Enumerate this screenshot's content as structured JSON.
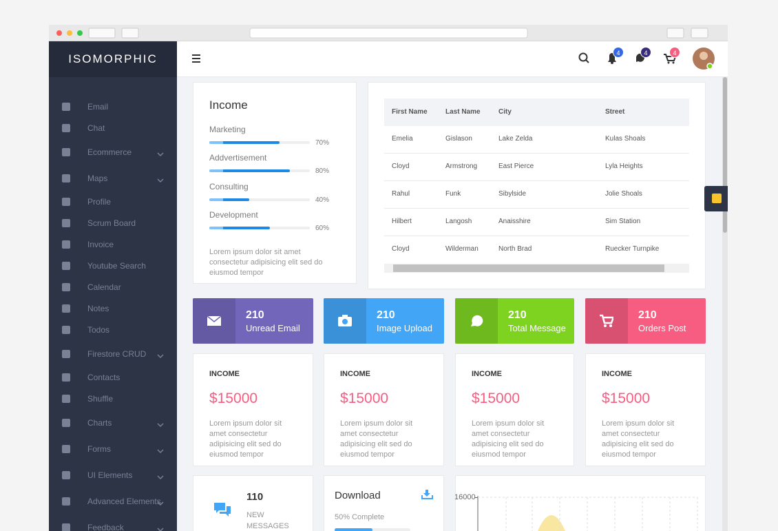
{
  "brand": "ISOMORPHIC",
  "sidebar": [
    {
      "label": "Email"
    },
    {
      "label": "Chat"
    },
    {
      "label": "Ecommerce",
      "submenu": true
    },
    {
      "label": "Maps",
      "submenu": true
    },
    {
      "label": "Profile"
    },
    {
      "label": "Scrum Board"
    },
    {
      "label": "Invoice"
    },
    {
      "label": "Youtube Search"
    },
    {
      "label": "Calendar"
    },
    {
      "label": "Notes"
    },
    {
      "label": "Todos"
    },
    {
      "label": "Firestore CRUD",
      "submenu": true
    },
    {
      "label": "Contacts"
    },
    {
      "label": "Shuffle"
    },
    {
      "label": "Charts",
      "submenu": true
    },
    {
      "label": "Forms",
      "submenu": true
    },
    {
      "label": "UI Elements",
      "submenu": true
    },
    {
      "label": "Advanced Elements",
      "submenu": true
    },
    {
      "label": "Feedback",
      "submenu": true
    }
  ],
  "header": {
    "badges": [
      {
        "value": 4,
        "color": "#3369e7"
      },
      {
        "value": 4,
        "color": "#3a2c7a"
      },
      {
        "value": 4,
        "color": "#f75d81"
      }
    ]
  },
  "income": {
    "title": "Income",
    "items": [
      {
        "label": "Marketing",
        "value": 70,
        "value_label": "70%"
      },
      {
        "label": "Addvertisement",
        "value": 80,
        "value_label": "80%"
      },
      {
        "label": "Consulting",
        "value": 40,
        "value_label": "40%"
      },
      {
        "label": "Development",
        "value": 60,
        "value_label": "60%"
      }
    ],
    "text": "Lorem ipsum dolor sit amet consectetur adipisicing elit sed do eiusmod tempor"
  },
  "table": {
    "columns": [
      "First Name",
      "Last Name",
      "City",
      "Street"
    ],
    "rows": [
      [
        "Emelia",
        "Gislason",
        "Lake Zelda",
        "Kulas Shoals"
      ],
      [
        "Cloyd",
        "Armstrong",
        "East Pierce",
        "Lyla Heights"
      ],
      [
        "Rahul",
        "Funk",
        "Sibylside",
        "Jolie Shoals"
      ],
      [
        "Hilbert",
        "Langosh",
        "Anaisshire",
        "Sim Station"
      ],
      [
        "Cloyd",
        "Wilderman",
        "North Brad",
        "Ruecker Turnpike"
      ]
    ]
  },
  "tiles": [
    {
      "value": 210,
      "label": "Unread Email",
      "color": "#7266ba"
    },
    {
      "value": 210,
      "label": "Image Upload",
      "color": "#42a5f6"
    },
    {
      "value": 210,
      "label": "Total Message",
      "color": "#7ed321"
    },
    {
      "value": 210,
      "label": "Orders Post",
      "color": "#f75d81"
    }
  ],
  "cards": [
    {
      "title": "INCOME",
      "amount": "$15000",
      "text": "Lorem ipsum dolor sit amet consectetur adipisicing elit sed do eiusmod tempor"
    },
    {
      "title": "INCOME",
      "amount": "$15000",
      "text": "Lorem ipsum dolor sit amet consectetur adipisicing elit sed do eiusmod tempor"
    },
    {
      "title": "INCOME",
      "amount": "$15000",
      "text": "Lorem ipsum dolor sit amet consectetur adipisicing elit sed do eiusmod tempor"
    },
    {
      "title": "INCOME",
      "amount": "$15000",
      "text": "Lorem ipsum dolor sit amet consectetur adipisicing elit sed do eiusmod tempor"
    }
  ],
  "messages": {
    "value": 110,
    "label": "NEW MESSAGES"
  },
  "download": {
    "title": "Download",
    "progress": 50,
    "progress_label": "50% Complete"
  },
  "chart": {
    "yticks": [
      16000
    ]
  }
}
